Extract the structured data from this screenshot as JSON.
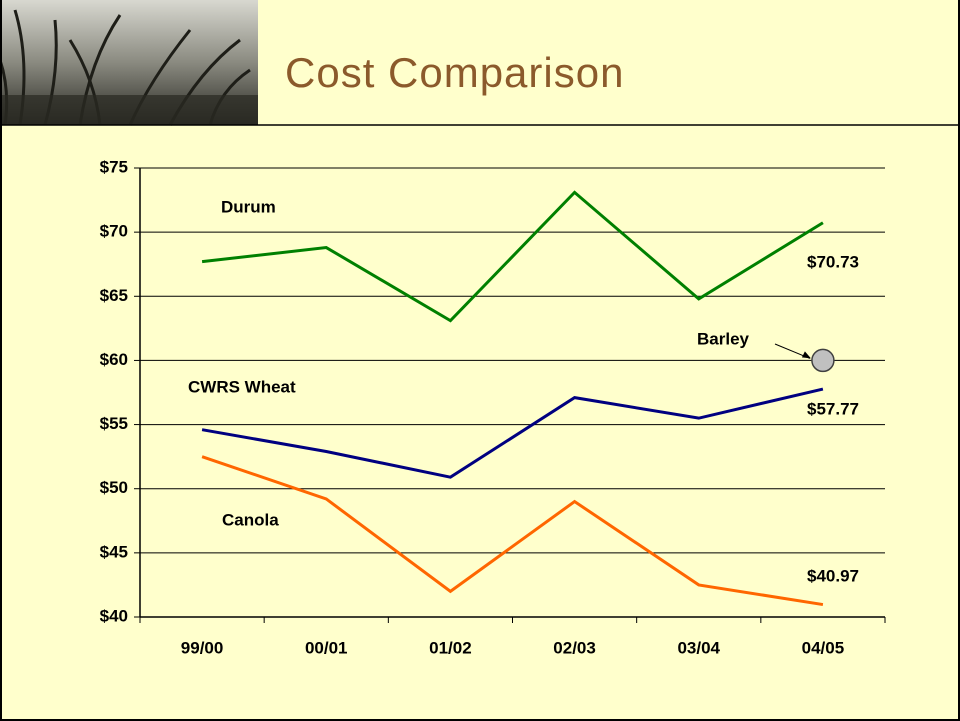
{
  "chart_data": {
    "type": "line",
    "title": "Cost Comparison",
    "categories": [
      "99/00",
      "00/01",
      "01/02",
      "02/03",
      "03/04",
      "04/05"
    ],
    "series": [
      {
        "name": "Durum",
        "color": "#008000",
        "values": [
          67.7,
          68.8,
          63.1,
          73.1,
          64.8,
          70.73
        ],
        "value_labels": [
          null,
          null,
          null,
          null,
          null,
          "$70.73"
        ]
      },
      {
        "name": "CWRS Wheat",
        "color": "#000080",
        "values": [
          54.6,
          52.9,
          50.9,
          57.1,
          55.5,
          57.77
        ],
        "value_labels": [
          null,
          null,
          null,
          null,
          null,
          "$57.77"
        ]
      },
      {
        "name": "Canola",
        "color": "#ff6600",
        "values": [
          52.5,
          49.2,
          42.0,
          49.0,
          42.5,
          40.97
        ],
        "value_labels": [
          null,
          null,
          null,
          null,
          null,
          "$40.97"
        ]
      },
      {
        "name": "Barley",
        "color": "#c0c0c0",
        "marker": "circle",
        "values": [
          null,
          null,
          null,
          null,
          null,
          60.0
        ]
      }
    ],
    "ylim": [
      40,
      75
    ],
    "yticks": [
      {
        "value": 40,
        "label": "$40"
      },
      {
        "value": 45,
        "label": "$45"
      },
      {
        "value": 50,
        "label": "$50"
      },
      {
        "value": 55,
        "label": "$55"
      },
      {
        "value": 60,
        "label": "$60"
      },
      {
        "value": 65,
        "label": "$65"
      },
      {
        "value": 70,
        "label": "$70"
      },
      {
        "value": 75,
        "label": "$75"
      }
    ],
    "grid": true
  }
}
